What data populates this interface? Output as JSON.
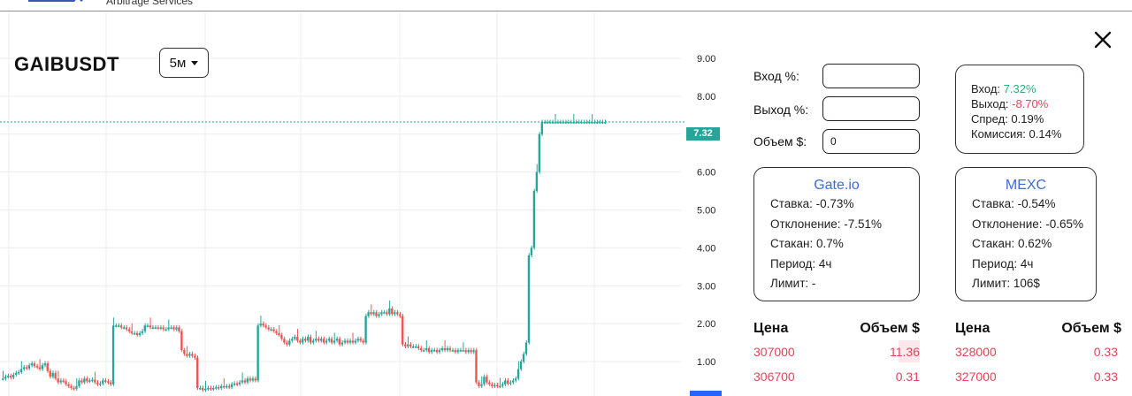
{
  "header": {
    "subtitle": "Arbitrage Services",
    "logo_icon": "brand-logo-icon"
  },
  "chart": {
    "symbol": "GAIBUSDT",
    "interval": "5м",
    "last_price_label": "7.32",
    "colors": {
      "up": "#26a69a",
      "down": "#ef5350",
      "grid": "#ececec",
      "last_price_line": "#26a69a"
    }
  },
  "chart_data": {
    "type": "candlestick",
    "y_ticks": [
      "9.00",
      "8.00",
      "7.00",
      "6.00",
      "5.00",
      "4.00",
      "3.00",
      "2.00",
      "1.00"
    ],
    "ylim": [
      0.2,
      9.8
    ],
    "last_price": 7.32,
    "x": [
      0,
      1,
      2,
      3,
      4,
      5,
      6,
      7,
      8,
      9,
      10,
      11,
      12,
      13,
      14,
      15,
      16,
      17,
      18,
      19,
      20,
      21,
      22,
      23,
      24,
      25,
      26,
      27,
      28,
      29,
      30,
      31,
      32,
      33,
      34,
      35,
      36,
      37,
      38,
      39,
      40,
      41,
      42,
      43,
      44,
      45,
      46,
      47,
      48,
      49,
      50,
      51,
      52,
      53,
      54,
      55,
      56,
      57,
      58,
      59,
      60,
      61,
      62,
      63,
      64,
      65,
      66,
      67,
      68,
      69,
      70,
      71,
      72,
      73,
      74,
      75,
      76,
      77,
      78,
      79,
      80,
      81,
      82,
      83,
      84,
      85,
      86,
      87,
      88,
      89,
      90,
      91,
      92,
      93,
      94,
      95,
      96,
      97,
      98,
      99,
      100,
      101,
      102,
      103,
      104,
      105,
      106,
      107,
      108,
      109,
      110,
      111,
      112,
      113,
      114,
      115,
      116,
      117,
      118,
      119,
      120,
      121,
      122,
      123,
      124,
      125,
      126,
      127,
      128,
      129,
      130,
      131,
      132,
      133,
      134,
      135,
      136,
      137,
      138,
      139,
      140,
      141,
      142,
      143,
      144,
      145,
      146,
      147,
      148,
      149,
      150,
      151,
      152,
      153,
      154,
      155,
      156,
      157,
      158,
      159,
      160,
      161,
      162,
      163,
      164,
      165,
      166,
      167,
      168,
      169,
      170,
      171,
      172,
      173,
      174,
      175,
      176,
      177,
      178,
      179,
      180,
      181,
      182,
      183,
      184,
      185,
      186,
      187,
      188,
      189,
      190,
      191,
      192,
      193,
      194,
      195,
      196,
      197,
      198,
      199,
      200,
      201,
      202,
      203,
      204,
      205,
      206,
      207,
      208,
      209,
      210,
      211,
      212,
      213,
      214,
      215,
      216,
      217,
      218,
      219,
      220,
      221,
      222,
      223,
      224,
      225,
      226,
      227,
      228,
      229
    ],
    "close": [
      0.55,
      0.6,
      0.62,
      0.58,
      0.65,
      0.7,
      0.72,
      0.8,
      0.85,
      0.82,
      0.9,
      0.95,
      0.88,
      0.85,
      0.8,
      0.9,
      0.95,
      0.75,
      0.6,
      0.7,
      0.55,
      0.45,
      0.5,
      0.48,
      0.4,
      0.35,
      0.3,
      0.28,
      0.35,
      0.5,
      0.45,
      0.55,
      0.48,
      0.5,
      0.52,
      0.45,
      0.4,
      0.42,
      0.5,
      0.48,
      0.45,
      0.4,
      1.95,
      1.95,
      1.95,
      1.9,
      1.9,
      1.85,
      1.8,
      1.75,
      1.75,
      1.7,
      1.75,
      1.8,
      1.95,
      1.95,
      1.9,
      1.9,
      1.9,
      1.88,
      1.9,
      1.85,
      1.85,
      1.9,
      1.9,
      1.85,
      1.9,
      1.8,
      1.3,
      1.2,
      1.15,
      1.2,
      1.15,
      1.1,
      0.3,
      0.3,
      0.25,
      0.28,
      0.3,
      0.28,
      0.3,
      0.32,
      0.3,
      0.35,
      0.33,
      0.35,
      0.32,
      0.4,
      0.42,
      0.4,
      0.45,
      0.5,
      0.45,
      0.55,
      0.5,
      0.55,
      0.5,
      1.95,
      2.0,
      1.95,
      1.9,
      1.85,
      1.85,
      1.8,
      1.75,
      1.7,
      1.6,
      1.5,
      1.45,
      1.55,
      1.6,
      1.65,
      1.55,
      1.5,
      1.6,
      1.55,
      1.65,
      1.5,
      1.55,
      1.6,
      1.55,
      1.6,
      1.5,
      1.55,
      1.6,
      1.5,
      1.55,
      1.6,
      1.45,
      1.5,
      1.55,
      1.5,
      1.55,
      1.5,
      1.55,
      1.6,
      1.55,
      1.5,
      2.2,
      2.3,
      2.25,
      2.3,
      2.2,
      2.25,
      2.3,
      2.3,
      2.25,
      2.4,
      2.25,
      2.3,
      2.25,
      2.2,
      1.45,
      1.4,
      1.45,
      1.4,
      1.4,
      1.4,
      1.35,
      1.3,
      1.3,
      1.35,
      1.25,
      1.3,
      1.3,
      1.25,
      1.3,
      1.35,
      1.3,
      1.35,
      1.3,
      1.3,
      1.25,
      1.3,
      1.3,
      1.3,
      1.25,
      1.3,
      1.25,
      1.3,
      0.45,
      0.35,
      0.4,
      0.6,
      0.45,
      0.4,
      0.35,
      0.38,
      0.35,
      0.36,
      0.4,
      0.5,
      0.42,
      0.45,
      0.5,
      0.55,
      0.8,
      1.0,
      1.2,
      1.5,
      3.8,
      4.0,
      5.5,
      6.0,
      7.0,
      7.32,
      7.32,
      7.32,
      7.32,
      7.32,
      7.32,
      7.32,
      7.32,
      7.32,
      7.32,
      7.32,
      7.32,
      7.32,
      7.32,
      7.32,
      7.32,
      7.32,
      7.32,
      7.32,
      7.32,
      7.32,
      7.32,
      7.32,
      7.32,
      7.32
    ]
  },
  "form": {
    "entry_label": "Вход %:",
    "exit_label": "Выход %:",
    "volume_label": "Объем $:",
    "entry_value": "",
    "exit_value": "",
    "volume_value": "0"
  },
  "summary": {
    "entry_label": "Вход:",
    "entry_value": "7.32%",
    "exit_label": "Выход:",
    "exit_value": "-8.70%",
    "spread": "Спред: 0.19%",
    "commission": "Комиссия: 0.14%"
  },
  "exchanges": [
    {
      "name": "Gate.io",
      "rate": "Ставка: -0.73%",
      "deviation": "Отклонение: -7.51%",
      "book": "Стакан: 0.7%",
      "period": "Период: 4ч",
      "limit": "Лимит: -"
    },
    {
      "name": "MEXC",
      "rate": "Ставка: -0.54%",
      "deviation": "Отклонение: -0.65%",
      "book": "Стакан: 0.62%",
      "period": "Период: 4ч",
      "limit": "Лимит: 106$"
    }
  ],
  "orderbooks": [
    {
      "price_header": "Цена",
      "volume_header": "Объем $",
      "rows": [
        {
          "price": "307000",
          "volume": "11.36"
        },
        {
          "price": "306700",
          "volume": "0.31"
        }
      ]
    },
    {
      "price_header": "Цена",
      "volume_header": "Объем $",
      "rows": [
        {
          "price": "328000",
          "volume": "0.33"
        },
        {
          "price": "327000",
          "volume": "0.33"
        }
      ]
    }
  ]
}
